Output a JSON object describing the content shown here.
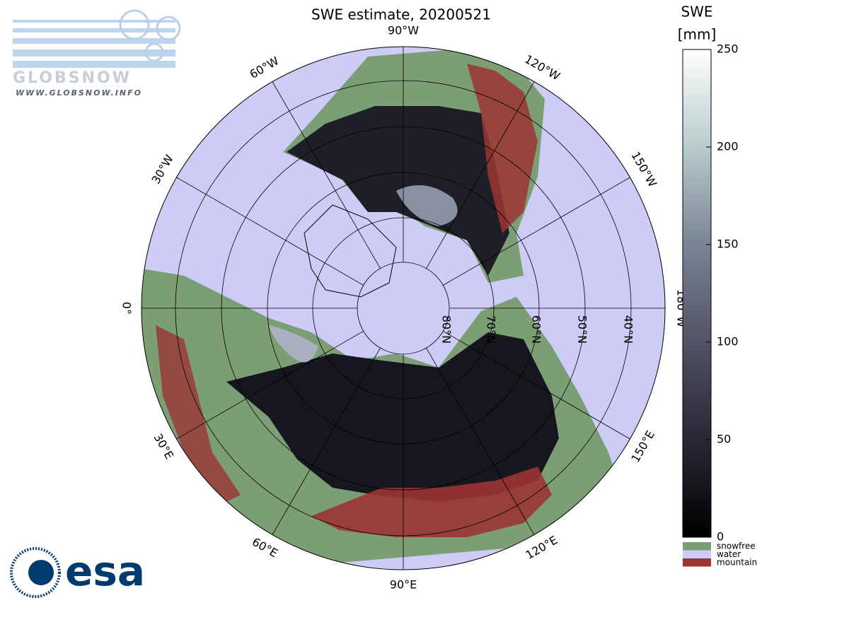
{
  "title": "SWE estimate, 20200521",
  "map": {
    "longitude_labels": [
      "0°",
      "30°E",
      "60°E",
      "90°E",
      "120°E",
      "150°E",
      "180°W",
      "150°W",
      "120°W",
      "90°W",
      "60°W",
      "30°W"
    ],
    "latitude_labels": [
      "80°N",
      "70°N",
      "60°N",
      "50°N",
      "40°N"
    ]
  },
  "colorbar": {
    "label": "SWE",
    "unit": "[mm]",
    "ylim": [
      0,
      250
    ],
    "yticks": [
      0,
      50,
      100,
      150,
      200,
      250
    ]
  },
  "legend": [
    {
      "name": "snowfree",
      "color": "#7b9e74"
    },
    {
      "name": "water",
      "color": "#ccccf6"
    },
    {
      "name": "mountain",
      "color": "#9c3434"
    }
  ],
  "logos": {
    "globsnow": "GLOBSNOW",
    "globsnow_url": "WWW.GLOBSNOW.INFO",
    "esa": "esa"
  }
}
